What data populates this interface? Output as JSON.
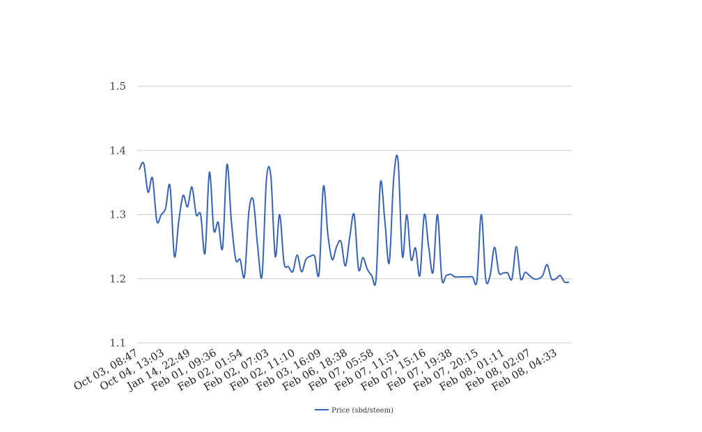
{
  "chart_data": {
    "type": "line",
    "title": "",
    "xlabel": "",
    "ylabel": "",
    "ylim": [
      1.1,
      1.5
    ],
    "yticks": [
      1.1,
      1.2,
      1.3,
      1.4,
      1.5
    ],
    "ytick_labels": [
      "1.1",
      "1.2",
      "1.3",
      "1.4",
      "1.5"
    ],
    "grid": true,
    "legend_position": "bottom",
    "x_tick_labels": [
      "Oct 03, 08:47",
      "Oct 04, 13:03",
      "Jan 14, 22:49",
      "Feb 01, 09:36",
      "Feb 02, 01:54",
      "Feb 02, 07:03",
      "Feb 02, 11:10",
      "Feb 03, 16:09",
      "Feb 06, 18:38",
      "Feb 07, 05:58",
      "Feb 07, 11:51",
      "Feb 07, 15:16",
      "Feb 07, 19:38",
      "Feb 07, 20:15",
      "Feb 08, 01:11",
      "Feb 08, 02:07",
      "Feb 08, 04:33"
    ],
    "series": [
      {
        "name": "Price (sbd/steem)",
        "color": "#3562b4",
        "values": [
          1.37,
          1.38,
          1.335,
          1.357,
          1.29,
          1.3,
          1.31,
          1.345,
          1.235,
          1.29,
          1.33,
          1.312,
          1.343,
          1.3,
          1.3,
          1.24,
          1.366,
          1.276,
          1.288,
          1.248,
          1.378,
          1.29,
          1.23,
          1.23,
          1.204,
          1.305,
          1.322,
          1.25,
          1.205,
          1.355,
          1.36,
          1.235,
          1.3,
          1.225,
          1.219,
          1.211,
          1.237,
          1.211,
          1.23,
          1.235,
          1.235,
          1.208,
          1.344,
          1.27,
          1.23,
          1.25,
          1.258,
          1.22,
          1.265,
          1.3,
          1.215,
          1.233,
          1.215,
          1.205,
          1.2,
          1.35,
          1.29,
          1.225,
          1.355,
          1.385,
          1.235,
          1.3,
          1.23,
          1.248,
          1.205,
          1.3,
          1.25,
          1.21,
          1.3,
          1.2,
          1.205,
          1.207,
          1.203,
          1.203,
          1.203,
          1.203,
          1.203,
          1.197,
          1.3,
          1.2,
          1.205,
          1.249,
          1.21,
          1.209,
          1.209,
          1.2,
          1.25,
          1.2,
          1.21,
          1.205,
          1.2,
          1.2,
          1.205,
          1.222,
          1.2,
          1.2,
          1.205,
          1.195,
          1.195
        ]
      }
    ]
  }
}
